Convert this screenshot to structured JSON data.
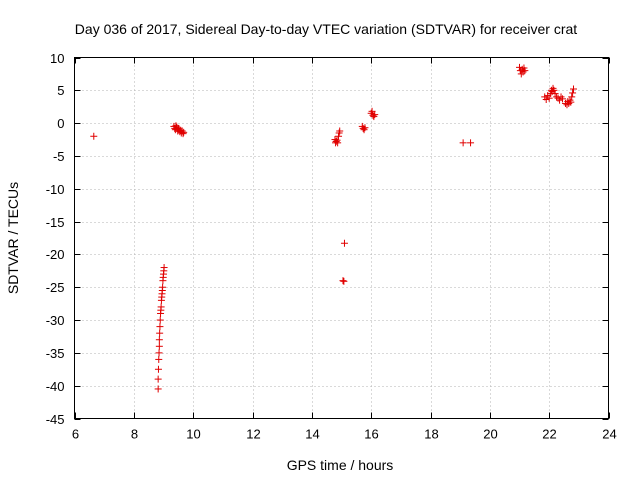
{
  "chart_data": {
    "type": "scatter",
    "title": "Day 036 of 2017, Sidereal Day-to-day VTEC variation (SDTVAR) for receiver crat",
    "xlabel": "GPS time / hours",
    "ylabel": "SDTVAR / TECUs",
    "xlim": [
      6,
      24
    ],
    "ylim": [
      -45,
      10
    ],
    "xticks": [
      6,
      8,
      10,
      12,
      14,
      16,
      18,
      20,
      22,
      24
    ],
    "yticks": [
      10,
      5,
      0,
      -5,
      -10,
      -15,
      -20,
      -25,
      -30,
      -35,
      -40,
      -45
    ],
    "grid": true,
    "marker": "+",
    "color": "#e00000",
    "series": [
      {
        "name": "SDTVAR",
        "points": [
          [
            6.65,
            -2.0
          ],
          [
            8.82,
            -40.5
          ],
          [
            8.82,
            -39.0
          ],
          [
            8.83,
            -37.5
          ],
          [
            8.84,
            -36.0
          ],
          [
            8.85,
            -35.0
          ],
          [
            8.86,
            -34.0
          ],
          [
            8.86,
            -33.0
          ],
          [
            8.87,
            -32.0
          ],
          [
            8.88,
            -31.0
          ],
          [
            8.89,
            -30.0
          ],
          [
            8.9,
            -29.0
          ],
          [
            8.91,
            -28.5
          ],
          [
            8.92,
            -28.0
          ],
          [
            8.93,
            -27.0
          ],
          [
            8.94,
            -26.5
          ],
          [
            8.95,
            -26.0
          ],
          [
            8.96,
            -25.5
          ],
          [
            8.97,
            -25.0
          ],
          [
            8.98,
            -24.0
          ],
          [
            8.99,
            -23.5
          ],
          [
            9.0,
            -23.0
          ],
          [
            9.01,
            -22.5
          ],
          [
            9.02,
            -22.0
          ],
          [
            9.35,
            -0.5
          ],
          [
            9.38,
            -0.8
          ],
          [
            9.4,
            -1.0
          ],
          [
            9.42,
            -0.4
          ],
          [
            9.45,
            -0.6
          ],
          [
            9.48,
            -1.2
          ],
          [
            9.5,
            -0.8
          ],
          [
            9.52,
            -1.0
          ],
          [
            9.55,
            -1.3
          ],
          [
            9.58,
            -1.1
          ],
          [
            9.6,
            -1.5
          ],
          [
            9.63,
            -1.2
          ],
          [
            9.66,
            -1.6
          ],
          [
            9.68,
            -1.4
          ],
          [
            14.78,
            -2.5
          ],
          [
            14.8,
            -3.0
          ],
          [
            14.82,
            -2.8
          ],
          [
            14.85,
            -2.6
          ],
          [
            14.87,
            -3.0
          ],
          [
            14.9,
            -2.0
          ],
          [
            14.92,
            -1.5
          ],
          [
            14.94,
            -1.2
          ],
          [
            15.05,
            -24.0
          ],
          [
            15.08,
            -24.1
          ],
          [
            15.1,
            -18.3
          ],
          [
            15.7,
            -0.5
          ],
          [
            15.73,
            -0.8
          ],
          [
            15.76,
            -1.0
          ],
          [
            15.79,
            -0.7
          ],
          [
            16.0,
            1.5
          ],
          [
            16.03,
            1.8
          ],
          [
            16.06,
            1.2
          ],
          [
            16.09,
            1.0
          ],
          [
            16.12,
            1.3
          ],
          [
            19.1,
            -3.0
          ],
          [
            19.35,
            -3.0
          ],
          [
            21.0,
            8.5
          ],
          [
            21.03,
            8.0
          ],
          [
            21.06,
            7.5
          ],
          [
            21.09,
            8.2
          ],
          [
            21.12,
            7.8
          ],
          [
            21.15,
            8.4
          ],
          [
            21.18,
            8.0
          ],
          [
            21.85,
            4.0
          ],
          [
            21.9,
            3.6
          ],
          [
            21.95,
            4.2
          ],
          [
            22.0,
            3.8
          ],
          [
            22.05,
            4.5
          ],
          [
            22.08,
            5.0
          ],
          [
            22.1,
            4.8
          ],
          [
            22.13,
            5.3
          ],
          [
            22.16,
            5.0
          ],
          [
            22.2,
            4.5
          ],
          [
            22.25,
            4.0
          ],
          [
            22.3,
            3.8
          ],
          [
            22.35,
            3.5
          ],
          [
            22.4,
            4.0
          ],
          [
            22.45,
            3.7
          ],
          [
            22.55,
            3.0
          ],
          [
            22.6,
            2.8
          ],
          [
            22.63,
            3.3
          ],
          [
            22.66,
            3.0
          ],
          [
            22.7,
            3.5
          ],
          [
            22.73,
            3.2
          ],
          [
            22.76,
            4.0
          ],
          [
            22.79,
            4.6
          ],
          [
            22.82,
            5.2
          ]
        ]
      }
    ]
  }
}
